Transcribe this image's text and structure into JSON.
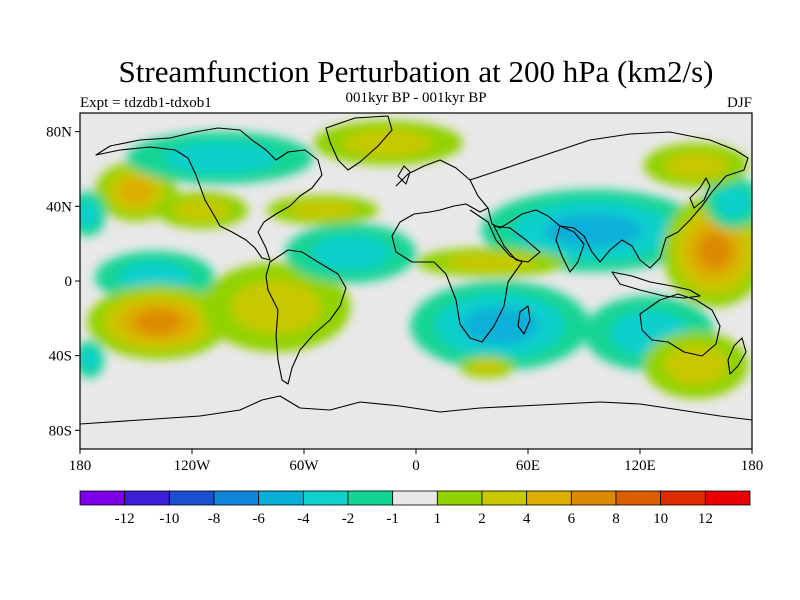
{
  "title": "Streamfunction Perturbation at 200 hPa (km2/s)",
  "subtitle_left": "Expt = tdzdb1-tdxob1",
  "subtitle_center": "001kyr BP - 001kyr BP",
  "subtitle_right": "DJF",
  "y_ticks": [
    {
      "lat": 80,
      "label": "80N"
    },
    {
      "lat": 40,
      "label": "40N"
    },
    {
      "lat": 0,
      "label": "0"
    },
    {
      "lat": -40,
      "label": "40S"
    },
    {
      "lat": -80,
      "label": "80S"
    }
  ],
  "x_ticks": [
    {
      "lon": -180,
      "label": "180"
    },
    {
      "lon": -120,
      "label": "120W"
    },
    {
      "lon": -60,
      "label": "60W"
    },
    {
      "lon": 0,
      "label": "0"
    },
    {
      "lon": 60,
      "label": "60E"
    },
    {
      "lon": 120,
      "label": "120E"
    },
    {
      "lon": 180,
      "label": "180"
    }
  ],
  "colorbar": {
    "colors": [
      "#7f00e8",
      "#3a1fd6",
      "#1b4fd0",
      "#0f86d8",
      "#08b0d8",
      "#10d0cc",
      "#12d494",
      "#e8e8e8",
      "#92d200",
      "#c8c800",
      "#dcae00",
      "#dc8a00",
      "#dc5e00",
      "#dc2c00",
      "#e80000"
    ],
    "labels": [
      "-12",
      "-10",
      "-8",
      "-6",
      "-4",
      "-2",
      "-1",
      "1",
      "2",
      "4",
      "6",
      "8",
      "10",
      "12"
    ]
  },
  "chart_data": {
    "type": "heatmap",
    "title": "Streamfunction Perturbation at 200 hPa (km2/s)",
    "projection": "cylindrical equidistant",
    "xlim": [
      -180,
      180
    ],
    "ylim": [
      -90,
      90
    ],
    "levels": [
      -12,
      -10,
      -8,
      -6,
      -4,
      -2,
      -1,
      1,
      2,
      4,
      6,
      8,
      10,
      12
    ],
    "background": "-1 to 1",
    "anomalies": [
      {
        "lon": -150,
        "lat": 48,
        "rx": 22,
        "ry": 16,
        "value": 5
      },
      {
        "lon": -176,
        "lat": 36,
        "rx": 10,
        "ry": 12,
        "value": -3
      },
      {
        "lon": -140,
        "lat": 2,
        "rx": 32,
        "ry": 14,
        "value": -3
      },
      {
        "lon": -138,
        "lat": -22,
        "rx": 38,
        "ry": 20,
        "value": 7
      },
      {
        "lon": -75,
        "lat": -14,
        "rx": 40,
        "ry": 24,
        "value": 3
      },
      {
        "lon": -35,
        "lat": 15,
        "rx": 35,
        "ry": 16,
        "value": -3
      },
      {
        "lon": -50,
        "lat": 38,
        "rx": 30,
        "ry": 8,
        "value": 2
      },
      {
        "lon": -105,
        "lat": 66,
        "rx": 50,
        "ry": 14,
        "value": -2
      },
      {
        "lon": -15,
        "lat": 74,
        "rx": 40,
        "ry": 12,
        "value": 2
      },
      {
        "lon": -115,
        "lat": 38,
        "rx": 25,
        "ry": 10,
        "value": 2
      },
      {
        "lon": 95,
        "lat": 27,
        "rx": 60,
        "ry": 22,
        "value": -5
      },
      {
        "lon": 40,
        "lat": 10,
        "rx": 40,
        "ry": 8,
        "value": 2
      },
      {
        "lon": 45,
        "lat": -24,
        "rx": 48,
        "ry": 24,
        "value": -4
      },
      {
        "lon": 38,
        "lat": -46,
        "rx": 15,
        "ry": 6,
        "value": 2
      },
      {
        "lon": 160,
        "lat": 16,
        "rx": 28,
        "ry": 30,
        "value": 6
      },
      {
        "lon": 170,
        "lat": 42,
        "rx": 15,
        "ry": 14,
        "value": -3
      },
      {
        "lon": 125,
        "lat": -28,
        "rx": 35,
        "ry": 20,
        "value": -3
      },
      {
        "lon": 150,
        "lat": -45,
        "rx": 28,
        "ry": 18,
        "value": 2
      },
      {
        "lon": 150,
        "lat": 62,
        "rx": 28,
        "ry": 12,
        "value": 2
      },
      {
        "lon": -175,
        "lat": -42,
        "rx": 8,
        "ry": 10,
        "value": -2
      }
    ]
  }
}
